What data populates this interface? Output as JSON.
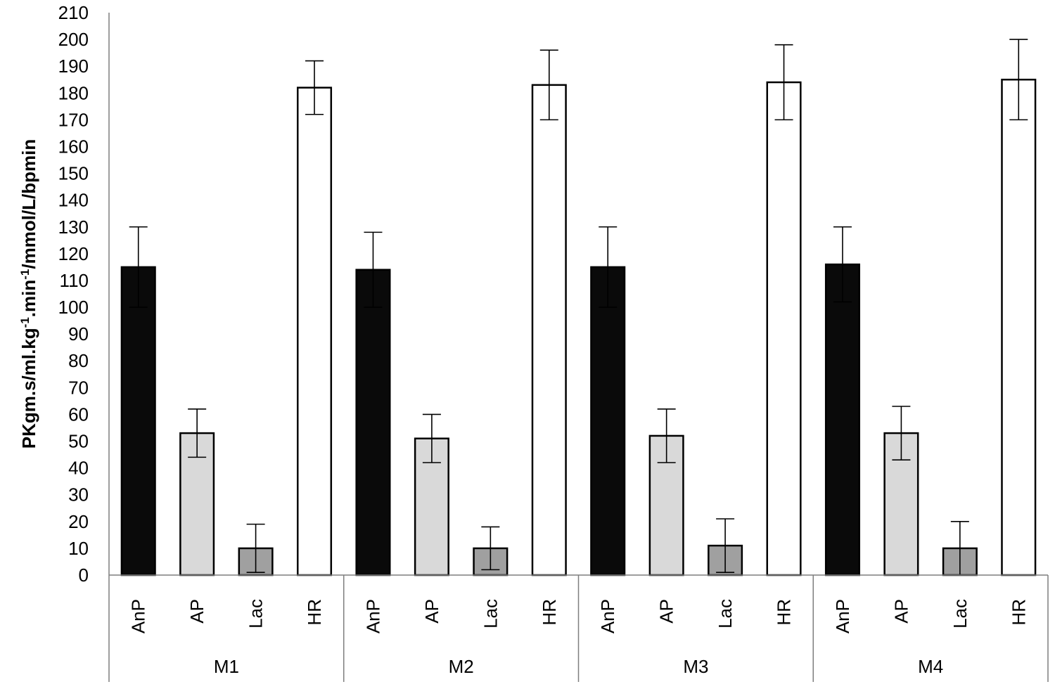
{
  "chart_data": {
    "type": "bar",
    "ylabel": {
      "pre": "PKgm.s/ml.kg",
      "sup1": "-1",
      "mid": ".min",
      "sup2": "-1",
      "post": "/mmol/L/bpmin"
    },
    "ylim": [
      0,
      210
    ],
    "yticks": [
      0,
      10,
      20,
      30,
      40,
      50,
      60,
      70,
      80,
      90,
      100,
      110,
      120,
      130,
      140,
      150,
      160,
      170,
      180,
      190,
      200,
      210
    ],
    "grid": false,
    "legend": "none",
    "categories": [
      "AnP",
      "AP",
      "Lac",
      "HR"
    ],
    "category_colors": [
      "#0a0a0a",
      "#d9d9d9",
      "#a0a0a0",
      "#ffffff"
    ],
    "groups": [
      {
        "name": "M1",
        "values": [
          115,
          53,
          10,
          182
        ],
        "errors": [
          15,
          9,
          9,
          10
        ]
      },
      {
        "name": "M2",
        "values": [
          114,
          51,
          10,
          183
        ],
        "errors": [
          14,
          9,
          8,
          13
        ]
      },
      {
        "name": "M3",
        "values": [
          115,
          52,
          11,
          184
        ],
        "errors": [
          15,
          10,
          10,
          14
        ]
      },
      {
        "name": "M4",
        "values": [
          116,
          53,
          10,
          185
        ],
        "errors": [
          14,
          10,
          10,
          15
        ]
      }
    ]
  }
}
